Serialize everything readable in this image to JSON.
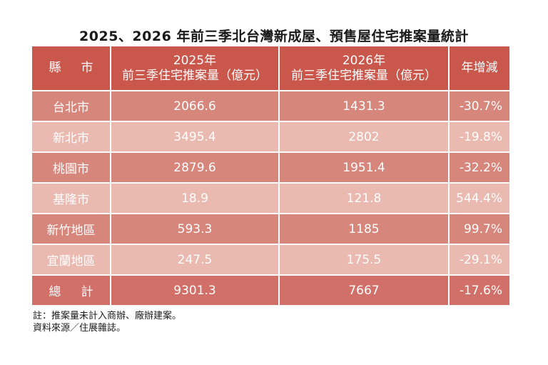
{
  "title": "2025、2026 年前三季北台灣新成屋、預售屋住宅推案量統計",
  "table": {
    "headers": {
      "county": "縣市",
      "y2025_line1": "2025年",
      "y2025_line2": "前三季住宅推案量（億元）",
      "y2026_line1": "2026年",
      "y2026_line2": "前三季住宅推案量（億元）",
      "change": "年增減"
    },
    "rows": [
      {
        "county": "台北市",
        "v2025": "2066.6",
        "v2026": "1431.3",
        "change": "-30.7%"
      },
      {
        "county": "新北市",
        "v2025": "3495.4",
        "v2026": "2802",
        "change": "-19.8%"
      },
      {
        "county": "桃園市",
        "v2025": "2879.6",
        "v2026": "1951.4",
        "change": "-32.2%"
      },
      {
        "county": "基隆市",
        "v2025": "18.9",
        "v2026": "121.8",
        "change": "544.4%"
      },
      {
        "county": "新竹地區",
        "v2025": "593.3",
        "v2026": "1185",
        "change": "99.7%"
      },
      {
        "county": "宜蘭地區",
        "v2025": "247.5",
        "v2026": "175.5",
        "change": "-29.1%"
      },
      {
        "county": "總計",
        "v2025": "9301.3",
        "v2026": "7667",
        "change": "-17.6%"
      }
    ]
  },
  "notes": {
    "line1": "註：推案量未計入商辦、廠辦建案。",
    "line2": "資料來源／住展雜誌。"
  },
  "colors": {
    "header": "#c9574c",
    "row_dark": "#d7867c",
    "row_light": "#eab9b0",
    "row_total": "#d07068"
  }
}
